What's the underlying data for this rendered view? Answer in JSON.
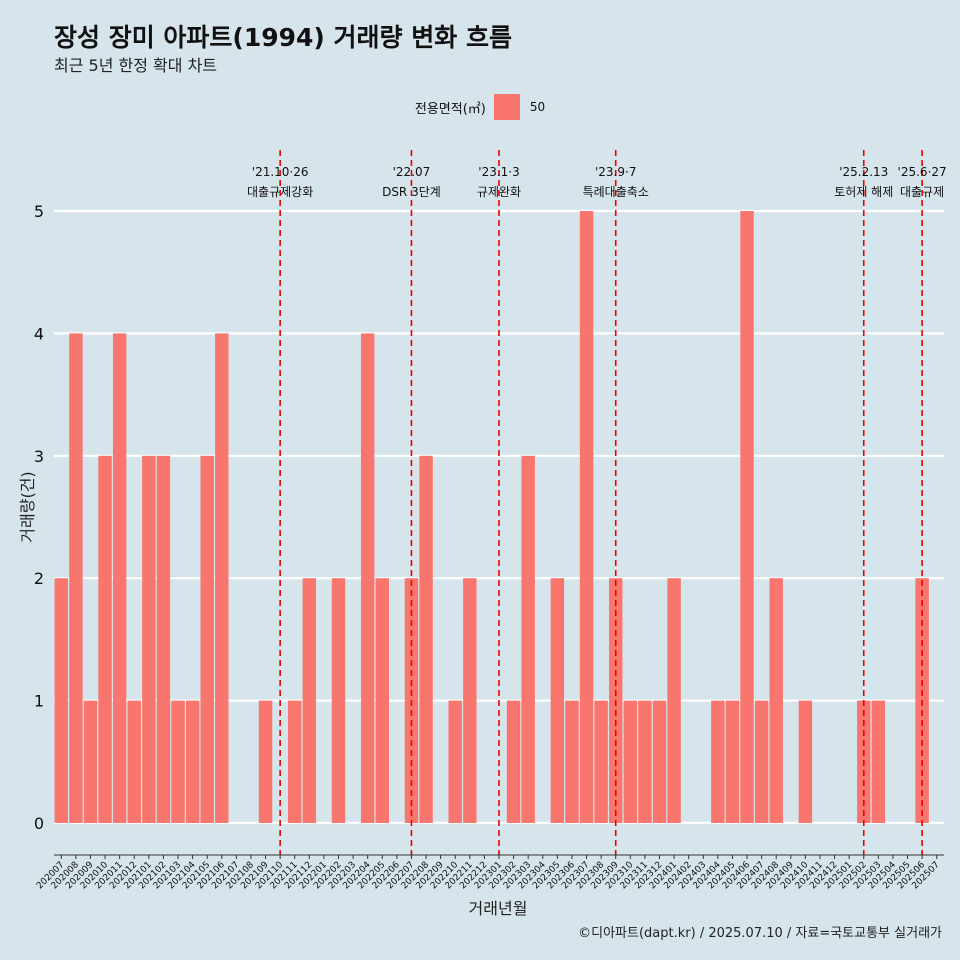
{
  "header": {
    "title": "장성 장미 아파트(1994) 거래량 변화 흐름",
    "subtitle": "최근 5년 한정 확대 차트"
  },
  "legend": {
    "title": "전용면적(㎡)",
    "label": "50",
    "color": "#f8766d"
  },
  "caption": "©디아파트(dapt.kr) / 2025.07.10 / 자료=국토교통부 실거래가",
  "colors": {
    "background": "#d6e4eb",
    "bar": "#f8766d",
    "gridline": "#ffffff",
    "event_line": "#ee0000"
  },
  "chart_data": {
    "type": "bar",
    "xlabel": "거래년월",
    "ylabel": "거래량(건)",
    "ylim": [
      0,
      5
    ],
    "yticks": [
      0,
      1,
      2,
      3,
      4,
      5
    ],
    "grid": true,
    "legend_position": "top",
    "categories": [
      "202007",
      "202008",
      "202009",
      "202010",
      "202011",
      "202012",
      "202101",
      "202102",
      "202103",
      "202104",
      "202105",
      "202106",
      "202107",
      "202108",
      "202109",
      "202110",
      "202111",
      "202112",
      "202201",
      "202202",
      "202203",
      "202204",
      "202205",
      "202206",
      "202207",
      "202208",
      "202209",
      "202210",
      "202211",
      "202212",
      "202301",
      "202302",
      "202303",
      "202304",
      "202305",
      "202306",
      "202307",
      "202308",
      "202309",
      "202310",
      "202311",
      "202312",
      "202401",
      "202402",
      "202403",
      "202404",
      "202405",
      "202406",
      "202407",
      "202408",
      "202409",
      "202410",
      "202411",
      "202412",
      "202501",
      "202502",
      "202503",
      "202504",
      "202505",
      "202506",
      "202507"
    ],
    "series": [
      {
        "name": "50",
        "values": [
          2,
          4,
          1,
          3,
          4,
          1,
          3,
          3,
          1,
          1,
          3,
          4,
          0,
          0,
          1,
          0,
          1,
          2,
          0,
          2,
          0,
          4,
          2,
          0,
          2,
          3,
          0,
          1,
          2,
          0,
          0,
          1,
          3,
          0,
          2,
          1,
          5,
          1,
          2,
          1,
          1,
          1,
          2,
          0,
          0,
          1,
          1,
          5,
          1,
          2,
          0,
          1,
          0,
          0,
          0,
          1,
          1,
          0,
          0,
          2,
          0
        ]
      }
    ],
    "annotations": [
      {
        "month": "202110",
        "date": "'21.10·26",
        "text": "대출규제강화"
      },
      {
        "month": "202207",
        "date": "'22.07",
        "text": "DSR 3단계"
      },
      {
        "month": "202301",
        "date": "'23.1·3",
        "text": "규제완화"
      },
      {
        "month": "202309",
        "date": "'23.9·7",
        "text": "특례대출축소"
      },
      {
        "month": "202502",
        "date": "'25.2.13",
        "text": "토허제 해제"
      },
      {
        "month": "202506",
        "date": "'25.6·27",
        "text": "대출규제"
      }
    ]
  }
}
